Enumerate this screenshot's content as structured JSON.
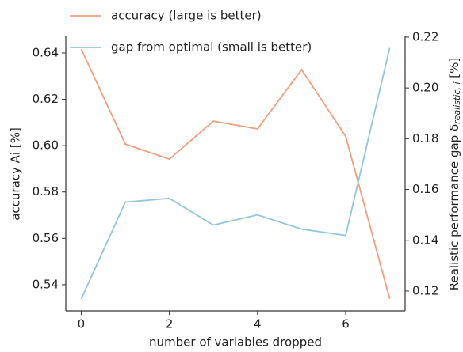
{
  "chart_data": {
    "type": "line",
    "x": [
      0,
      1,
      2,
      3,
      4,
      5,
      6,
      7
    ],
    "xlabel": "number of variables dropped",
    "ylabel": "accuracy Ai [%]",
    "y2label": [
      "Realistic performance gap δ",
      "realistic, i",
      " [%]"
    ],
    "xlim": [
      -0.35,
      7.35
    ],
    "xticks": [
      0,
      2,
      4,
      6
    ],
    "ylim": [
      0.5287,
      0.6475
    ],
    "yticks": [
      0.54,
      0.56,
      0.58,
      {
        "value": 0.6,
        "label": "0.60"
      },
      0.62,
      0.64
    ],
    "y2lim": [
      0.1122,
      0.2206
    ],
    "y2ticks": [
      0.12,
      0.14,
      0.16,
      0.18,
      {
        "value": 0.2,
        "label": "0.20"
      },
      0.22
    ],
    "series": [
      {
        "name": "accuracy (large is better)",
        "color": "#f0a07e",
        "values": [
          0.6417,
          0.6007,
          0.5942,
          0.6106,
          0.6072,
          0.6328,
          0.6041,
          0.5339
        ]
      },
      {
        "name": "gap from optimal (small is better)",
        "color": "#92c5de",
        "axis": "y2",
        "values": [
          0.1169,
          0.155,
          0.1565,
          0.146,
          0.15,
          0.1444,
          0.1419,
          0.2157
        ]
      }
    ]
  }
}
